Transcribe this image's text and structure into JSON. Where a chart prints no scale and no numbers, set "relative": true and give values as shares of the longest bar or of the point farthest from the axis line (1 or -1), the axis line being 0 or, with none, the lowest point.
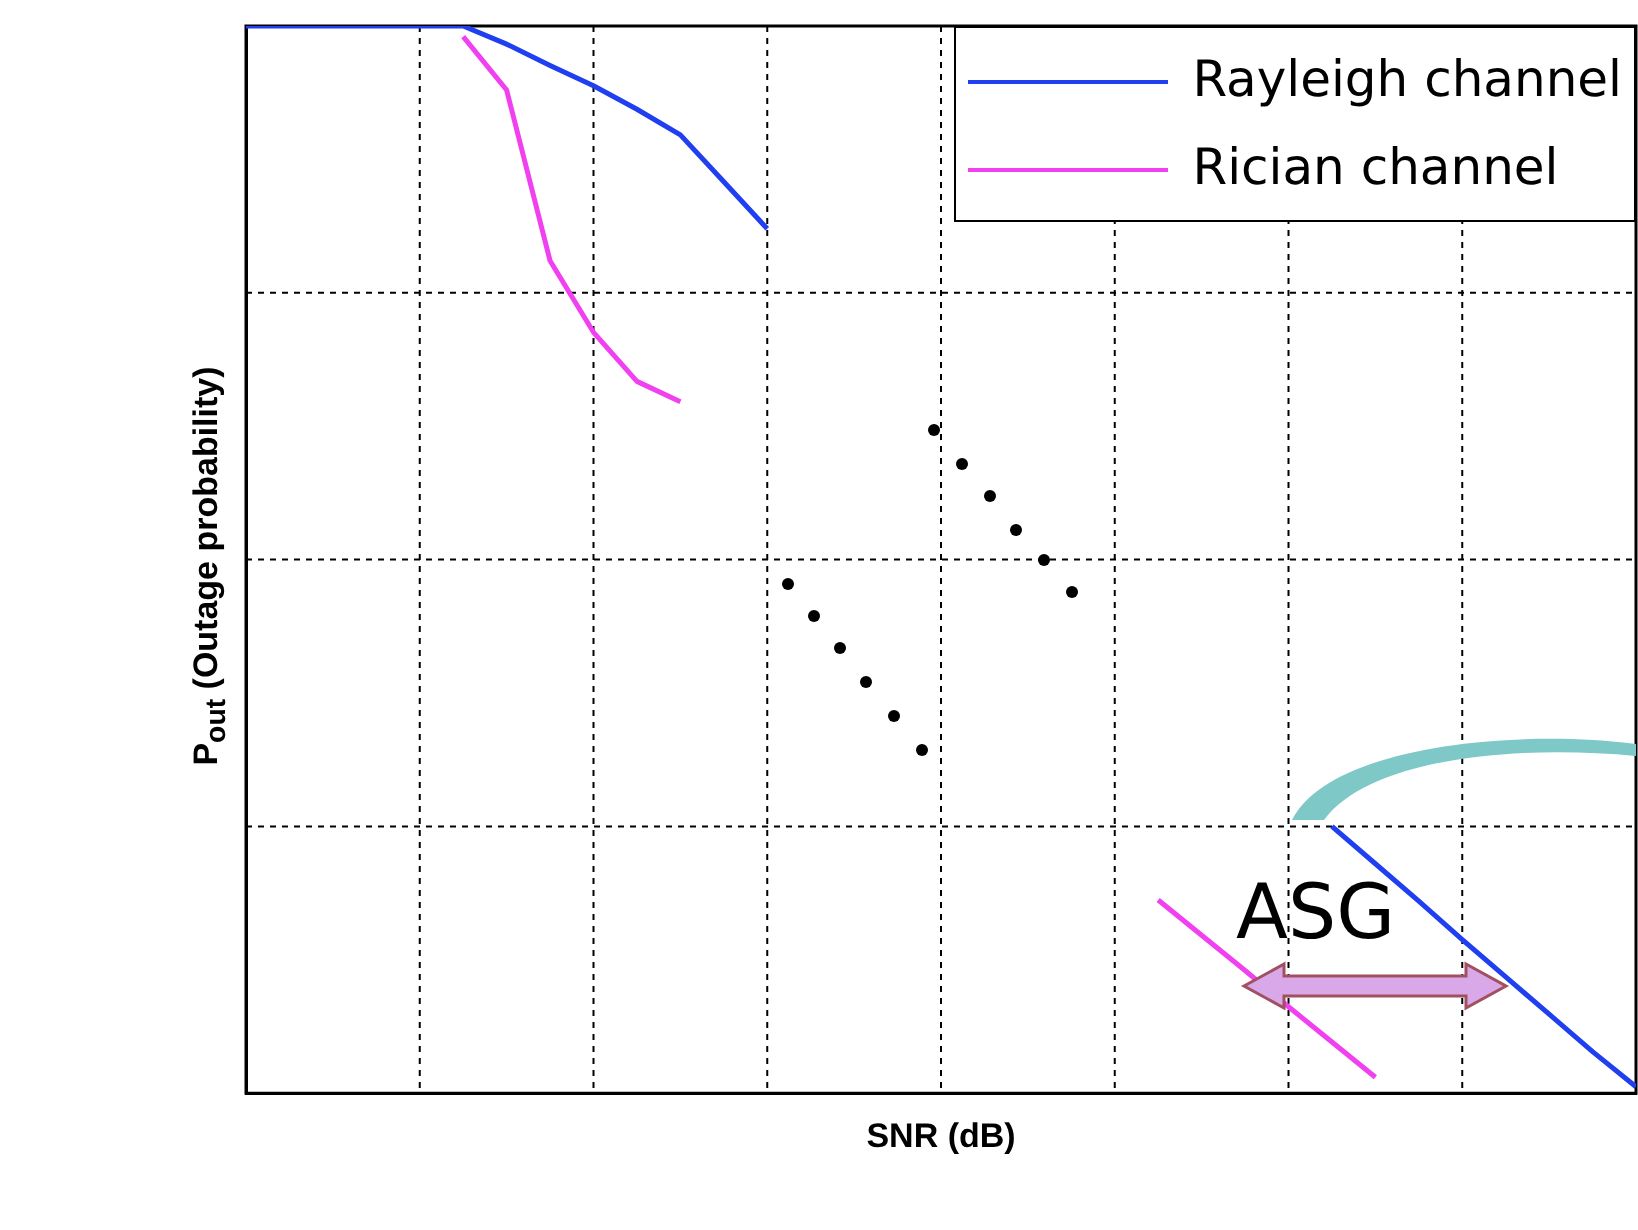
{
  "chart_data": {
    "type": "line",
    "relative": true,
    "xlabel": "SNR (dB)",
    "ylabel": "P$_{out}$ (Outage probability)",
    "grid": true,
    "legend": "top right",
    "marker": "none",
    "annotations": [
      "ASG"
    ],
    "categories": [
      null,
      null,
      null,
      null,
      null,
      null,
      null,
      null,
      null,
      null,
      null,
      null,
      null,
      null,
      null,
      null,
      null,
      null,
      null,
      null,
      null,
      null,
      null,
      null,
      null,
      null,
      null,
      null,
      null,
      null,
      null,
      null,
      null
    ],
    "series": [
      {
        "name": "Rayleigh channel",
        "color": "#1f3ff0",
        "values": [
          1,
          1,
          1,
          1,
          1,
          1,
          0.983,
          0.963,
          0.944,
          0.922,
          0.898,
          0.854,
          0.81,
          null,
          null,
          null,
          null,
          null,
          null,
          null,
          null,
          null,
          null,
          null,
          null,
          null,
          null,
          null,
          null,
          null,
          null,
          null,
          null
        ]
      },
      {
        "color": "#1f3ff0",
        "values": [
          null,
          null,
          null,
          null,
          null,
          null,
          null,
          null,
          null,
          null,
          null,
          null,
          null,
          null,
          null,
          null,
          null,
          null,
          null,
          null,
          null,
          null,
          null,
          null,
          null,
          0.25,
          0.215,
          0.18,
          0.144,
          0.109,
          0.074,
          0.039,
          0.006
        ]
      },
      {
        "name": "Rician channel",
        "color": "#f040f0",
        "values": [
          null,
          null,
          null,
          null,
          null,
          0.99,
          0.94,
          0.78,
          0.713,
          0.667,
          0.648,
          null,
          null,
          null,
          null,
          null,
          null,
          null,
          null,
          null,
          null,
          null,
          null,
          null,
          null,
          null,
          null,
          null,
          null,
          null,
          null,
          null,
          null
        ]
      },
      {
        "color": "#f040f0",
        "values": [
          null,
          null,
          null,
          null,
          null,
          null,
          null,
          null,
          null,
          null,
          null,
          null,
          null,
          null,
          null,
          null,
          null,
          null,
          null,
          null,
          null,
          0.181,
          0.148,
          0.115,
          0.081,
          0.048,
          0.015,
          null,
          null,
          null,
          null,
          null,
          null
        ]
      }
    ]
  }
}
